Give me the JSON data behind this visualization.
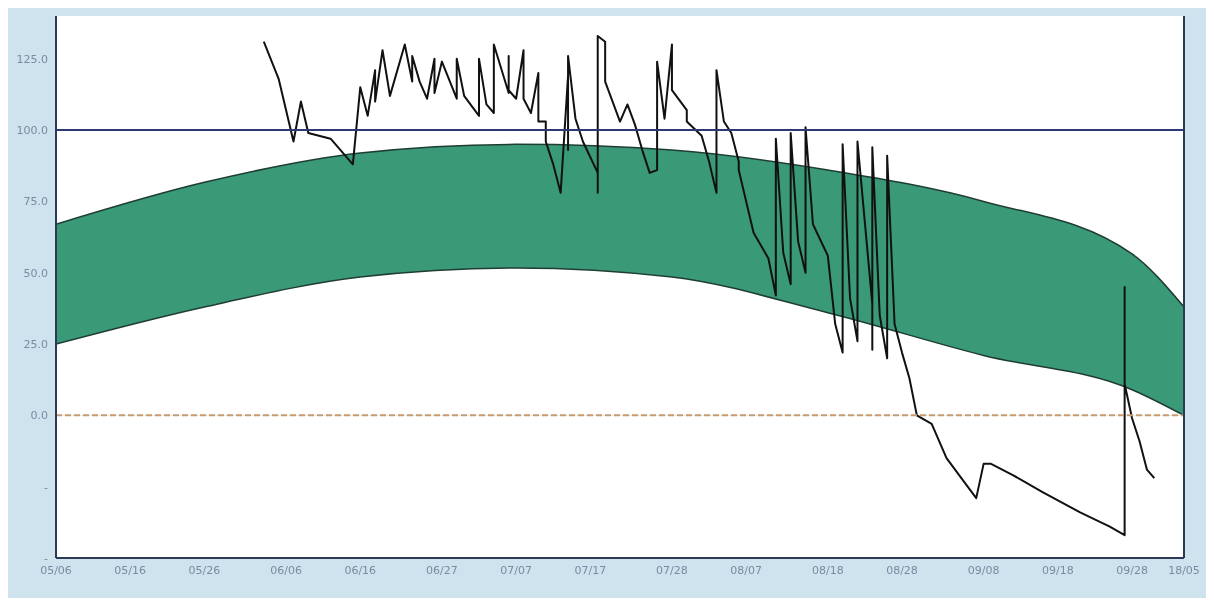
{
  "chart_data": {
    "type": "line",
    "xlim": [
      "--05-06",
      "--10-05"
    ],
    "xticks": [
      {
        "value": "--05-06",
        "label": "05/06"
      },
      {
        "value": "--05-16",
        "label": "05/16"
      },
      {
        "value": "--05-26",
        "label": "05/26"
      },
      {
        "value": "--06-06",
        "label": "06/06"
      },
      {
        "value": "--06-16",
        "label": "06/16"
      },
      {
        "value": "--06-27",
        "label": "06/27"
      },
      {
        "value": "--07-07",
        "label": "07/07"
      },
      {
        "value": "--07-17",
        "label": "07/17"
      },
      {
        "value": "--07-28",
        "label": "07/28"
      },
      {
        "value": "--08-07",
        "label": "08/07"
      },
      {
        "value": "--08-18",
        "label": "08/18"
      },
      {
        "value": "--08-28",
        "label": "08/28"
      },
      {
        "value": "--09-08",
        "label": "09/08"
      },
      {
        "value": "--09-18",
        "label": "09/18"
      },
      {
        "value": "--09-28",
        "label": "09/28"
      },
      {
        "value": "--10-05",
        "label": "18/05"
      }
    ],
    "ylim": [
      -50,
      140
    ],
    "yticks": [
      {
        "value": -50,
        "label": "-"
      },
      {
        "value": -25,
        "label": "-"
      },
      {
        "value": 0,
        "label": "0.0"
      },
      {
        "value": 25,
        "label": "25.0"
      },
      {
        "value": 50,
        "label": "50.0"
      },
      {
        "value": 75,
        "label": "75.0"
      },
      {
        "value": 100,
        "label": "100.0"
      },
      {
        "value": 125,
        "label": "125.0"
      }
    ],
    "grid": false,
    "marker": "none",
    "ref_lines": [
      {
        "axis": "y",
        "value": 100,
        "color": "#2b3a75",
        "line_style": "solid"
      },
      {
        "axis": "y",
        "value": 0,
        "color": "#c89a70",
        "line_style": "dashed"
      }
    ],
    "series": [
      {
        "type": "area",
        "color": "#3a9a78",
        "x": [
          "--05-06",
          "--05-26",
          "--06-16",
          "--07-07",
          "--07-28",
          "--08-18",
          "--09-08",
          "--09-28",
          "--10-05"
        ],
        "values": [
          67,
          81.7,
          92,
          95,
          93,
          86,
          75,
          56.6,
          38
        ]
      },
      {
        "type": "area",
        "color": "#ffffff",
        "x": [
          "--05-06",
          "--05-26",
          "--06-16",
          "--07-07",
          "--07-28",
          "--08-18",
          "--09-08",
          "--09-28",
          "--10-05"
        ],
        "values": [
          25,
          38,
          48.5,
          51.7,
          48.5,
          36,
          21,
          9,
          0
        ]
      },
      {
        "type": "line",
        "color": "#111111",
        "line_style": "solid",
        "x": [
          "--06-03",
          "--06-05",
          "--06-07",
          "--06-08",
          "--06-09",
          "--06-12",
          "--06-15",
          "--06-16",
          "--06-17",
          "--06-18",
          "--06-18",
          "--06-19",
          "--06-20",
          "--06-22",
          "--06-23",
          "--06-23",
          "--06-24",
          "--06-25",
          "--06-26",
          "--06-26",
          "--06-27",
          "--06-29",
          "--06-29",
          "--06-30",
          "--07-02",
          "--07-02",
          "--07-03",
          "--07-04",
          "--07-04",
          "--07-06",
          "--07-06",
          "--07-06",
          "--07-07",
          "--07-08",
          "--07-08",
          "--07-09",
          "--07-10",
          "--07-10",
          "--07-11",
          "--07-11",
          "--07-12",
          "--07-13",
          "--07-14",
          "--07-14",
          "--07-14",
          "--07-15",
          "--07-16",
          "--07-18",
          "--07-18",
          "--07-18",
          "--07-19",
          "--07-19",
          "--07-20",
          "--07-21",
          "--07-22",
          "--07-23",
          "--07-24",
          "--07-25",
          "--07-26",
          "--07-26",
          "--07-27",
          "--07-28",
          "--07-28",
          "--07-30",
          "--07-30",
          "--08-01",
          "--08-02",
          "--08-03",
          "--08-03",
          "--08-04",
          "--08-05",
          "--08-06",
          "--08-06",
          "--08-07",
          "--08-08",
          "--08-10",
          "--08-11",
          "--08-11",
          "--08-12",
          "--08-13",
          "--08-13",
          "--08-14",
          "--08-15",
          "--08-15",
          "--08-16",
          "--08-18",
          "--08-19",
          "--08-20",
          "--08-20",
          "--08-21",
          "--08-22",
          "--08-22",
          "--08-24",
          "--08-24",
          "--08-24",
          "--08-25",
          "--08-26",
          "--08-26",
          "--08-27",
          "--08-28",
          "--08-29",
          "--08-30",
          "--09-01",
          "--09-03",
          "--09-05",
          "--09-07",
          "--09-07",
          "--09-08",
          "--09-09",
          "--09-12",
          "--09-16",
          "--09-21",
          "--09-25",
          "--09-27",
          "--09-27",
          "--09-27",
          "--09-28",
          "--09-29",
          "--09-30",
          "--10-01"
        ],
        "values": [
          131,
          118,
          96,
          110,
          99,
          97,
          88,
          115,
          105,
          121,
          110,
          128,
          112,
          130,
          117,
          126,
          117,
          111,
          125,
          113,
          124,
          111,
          125,
          112,
          105,
          125,
          109,
          106,
          130,
          113,
          126,
          114,
          111,
          128,
          111,
          106,
          120,
          103,
          103,
          96,
          88,
          78,
          119,
          93,
          126,
          104,
          96,
          85,
          78,
          133,
          131,
          117,
          110,
          103,
          109,
          102,
          93,
          85,
          86,
          124,
          104,
          130,
          114,
          107,
          103,
          98,
          89,
          78,
          121,
          103,
          99,
          89,
          86,
          75,
          64,
          55,
          42,
          97,
          57,
          46,
          99,
          61,
          50,
          101,
          67,
          56,
          32,
          22,
          95,
          41,
          26,
          96,
          39,
          23,
          94,
          35,
          20,
          91,
          32,
          22,
          13,
          0,
          -3,
          -15,
          -22,
          -29,
          -29,
          -17,
          -17,
          -21,
          -27,
          -34,
          -39,
          -42,
          45,
          11,
          -1,
          -9,
          -19,
          -22
        ]
      }
    ]
  }
}
